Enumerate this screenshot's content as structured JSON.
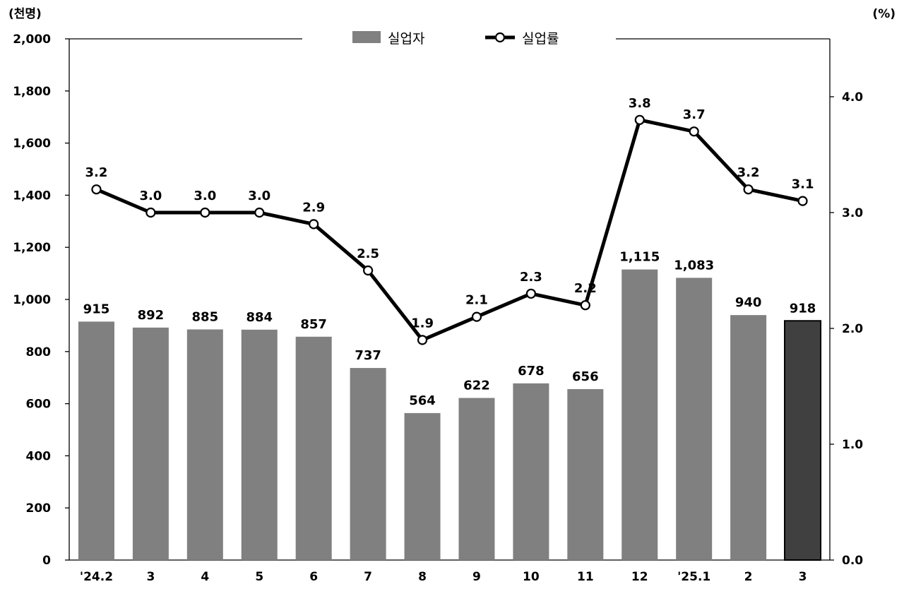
{
  "chart_data": {
    "type": "bar+line",
    "categories": [
      "'24.2",
      "3",
      "4",
      "5",
      "6",
      "7",
      "8",
      "9",
      "10",
      "11",
      "12",
      "'25.1",
      "2",
      "3"
    ],
    "series": [
      {
        "name": "실업자",
        "type": "bar",
        "axis": "left",
        "values": [
          915,
          892,
          885,
          884,
          857,
          737,
          564,
          622,
          678,
          656,
          1115,
          1083,
          940,
          918
        ],
        "labels": [
          "915",
          "892",
          "885",
          "884",
          "857",
          "737",
          "564",
          "622",
          "678",
          "656",
          "1,115",
          "1,083",
          "940",
          "918"
        ]
      },
      {
        "name": "실업률",
        "type": "line",
        "axis": "right",
        "values": [
          3.2,
          3.0,
          3.0,
          3.0,
          2.9,
          2.5,
          1.9,
          2.1,
          2.3,
          2.2,
          3.8,
          3.7,
          3.2,
          3.1
        ],
        "labels": [
          "3.2",
          "3.0",
          "3.0",
          "3.0",
          "2.9",
          "2.5",
          "1.9",
          "2.1",
          "2.3",
          "2.2",
          "3.8",
          "3.7",
          "3.2",
          "3.1"
        ]
      }
    ],
    "y_left": {
      "unit": "(천명)",
      "ylim": [
        0,
        2000
      ],
      "ticks": [
        0,
        200,
        400,
        600,
        800,
        1000,
        1200,
        1400,
        1600,
        1800,
        2000
      ],
      "tick_labels": [
        "0",
        "200",
        "400",
        "600",
        "800",
        "1,000",
        "1,200",
        "1,400",
        "1,600",
        "1,800",
        "2,000"
      ]
    },
    "y_right": {
      "unit": "(%)",
      "ylim": [
        0,
        4.5
      ],
      "ticks": [
        0,
        1,
        2,
        3,
        4
      ],
      "tick_labels": [
        "0.0",
        "1.0",
        "2.0",
        "3.0",
        "4.0"
      ]
    },
    "highlight_index": 13,
    "colors": {
      "bar": "#808080",
      "bar_highlight": "#404040",
      "line": "#000000",
      "marker_fill": "#ffffff"
    },
    "grid": false,
    "legend_position": "top-center"
  }
}
